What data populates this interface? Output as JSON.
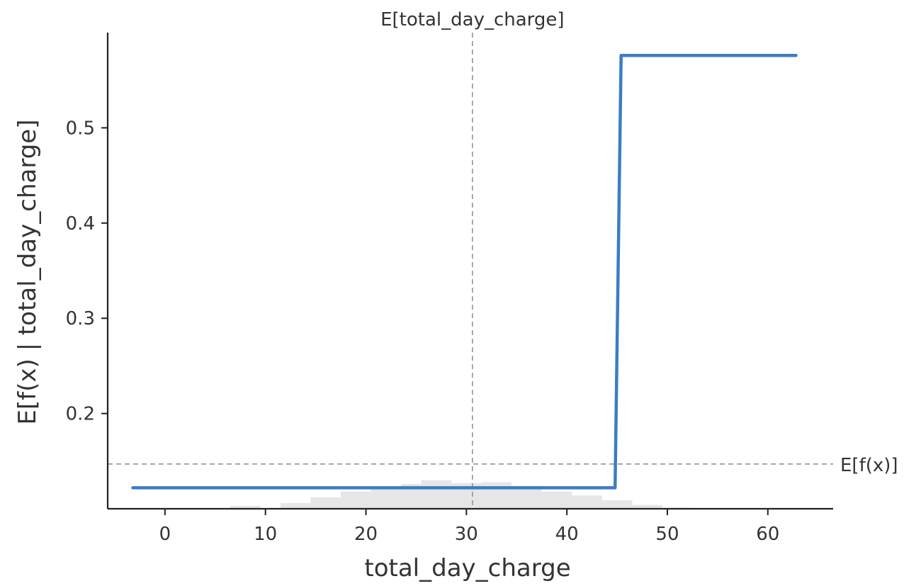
{
  "chart_data": {
    "type": "line",
    "xlabel": "total_day_charge",
    "ylabel": "E[f(x) | total_day_charge]",
    "xlim": [
      -5.7,
      66.5
    ],
    "ylim": [
      0.1,
      0.6
    ],
    "x_ticks": [
      0,
      10,
      20,
      30,
      40,
      50,
      60
    ],
    "y_ticks": [
      0.2,
      0.3,
      0.4,
      0.5
    ],
    "x_tick_labels": [
      "0",
      "10",
      "20",
      "30",
      "40",
      "50",
      "60"
    ],
    "y_tick_labels": [
      "0.2",
      "0.3",
      "0.4",
      "0.5"
    ],
    "grid": false,
    "series": [
      {
        "color": "#3a7ec2",
        "x": [
          -3.2,
          44.8,
          45.4,
          62.8
        ],
        "y": [
          0.122,
          0.122,
          0.576,
          0.576
        ]
      }
    ],
    "reference_lines": {
      "horizontal": {
        "label": "E[f(x)]",
        "y": 0.147
      },
      "vertical": {
        "label": "E[total_day_charge]",
        "x": 30.6
      }
    },
    "histogram": {
      "color": "#e6e6e6",
      "bins": [
        {
          "x": 3,
          "height": 0.0
        },
        {
          "x": 8,
          "height": 0.003
        },
        {
          "x": 13,
          "height": 0.006
        },
        {
          "x": 16,
          "height": 0.012
        },
        {
          "x": 19,
          "height": 0.018
        },
        {
          "x": 22,
          "height": 0.022
        },
        {
          "x": 25,
          "height": 0.026
        },
        {
          "x": 27,
          "height": 0.03
        },
        {
          "x": 30,
          "height": 0.027
        },
        {
          "x": 33,
          "height": 0.028
        },
        {
          "x": 36,
          "height": 0.024
        },
        {
          "x": 39,
          "height": 0.018
        },
        {
          "x": 42,
          "height": 0.014
        },
        {
          "x": 45,
          "height": 0.009
        },
        {
          "x": 48,
          "height": 0.004
        },
        {
          "x": 51,
          "height": 0.001
        }
      ]
    }
  }
}
